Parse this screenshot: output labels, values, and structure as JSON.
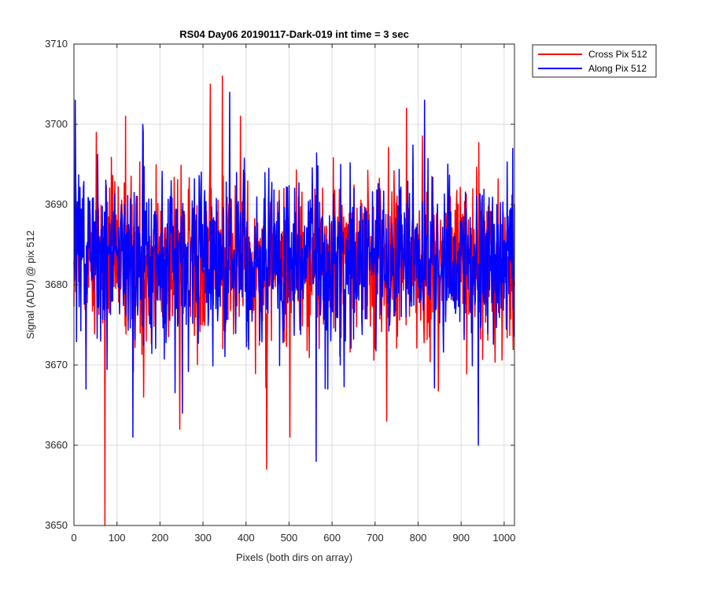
{
  "chart_data": {
    "type": "line",
    "title": "RS04 Day06 20190117-Dark-019 int time = 3 sec",
    "xlabel": "Pixels (both dirs on array)",
    "ylabel": "Signal (ADU) @ pix 512",
    "xlim": [
      0,
      1024
    ],
    "ylim": [
      3650,
      3710
    ],
    "xticks": [
      0,
      100,
      200,
      300,
      400,
      500,
      600,
      700,
      800,
      900,
      1000
    ],
    "yticks": [
      3650,
      3660,
      3670,
      3680,
      3690,
      3700,
      3710
    ],
    "grid": true,
    "legend_position": "outside-top-right",
    "noise_center": 3683,
    "series": [
      {
        "name": "Cross Pix 512",
        "color": "#ff0000",
        "peaks": [
          {
            "x": 72,
            "y": 3650
          },
          {
            "x": 448,
            "y": 3657
          },
          {
            "x": 345,
            "y": 3706
          },
          {
            "x": 317,
            "y": 3705
          },
          {
            "x": 387,
            "y": 3701
          },
          {
            "x": 773,
            "y": 3702
          },
          {
            "x": 120,
            "y": 3701
          },
          {
            "x": 52,
            "y": 3699
          },
          {
            "x": 246,
            "y": 3662
          },
          {
            "x": 162,
            "y": 3666
          },
          {
            "x": 502,
            "y": 3661
          },
          {
            "x": 727,
            "y": 3663
          },
          {
            "x": 940,
            "y": 3665
          }
        ]
      },
      {
        "name": "Along Pix 512",
        "color": "#0000ff",
        "peaks": [
          {
            "x": 3,
            "y": 3703
          },
          {
            "x": 362,
            "y": 3704
          },
          {
            "x": 815,
            "y": 3703
          },
          {
            "x": 160,
            "y": 3700
          },
          {
            "x": 563,
            "y": 3658
          },
          {
            "x": 940,
            "y": 3660
          },
          {
            "x": 137,
            "y": 3661
          },
          {
            "x": 252,
            "y": 3664
          },
          {
            "x": 28,
            "y": 3667
          },
          {
            "x": 590,
            "y": 3667
          },
          {
            "x": 1020,
            "y": 3697
          }
        ]
      }
    ]
  }
}
